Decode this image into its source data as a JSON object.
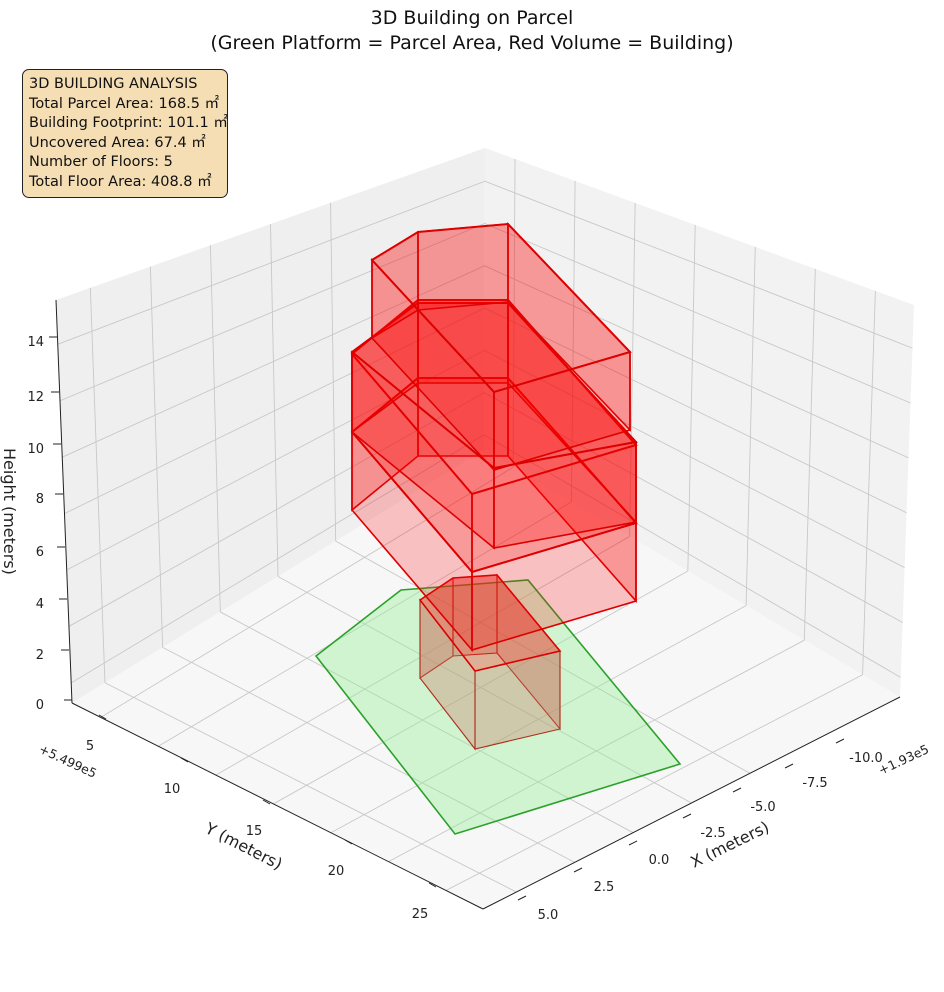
{
  "chart_data": {
    "type": "3d-polygons",
    "title": "3D Building on Parcel",
    "subtitle": "(Green Platform = Parcel Area, Red Volume = Building)",
    "xlabel": "X (meters)",
    "ylabel": "Y (meters)",
    "zlabel": "Height (meters)",
    "x_offset_label": "+1.93e5",
    "y_offset_label": "+5.499e5",
    "x_ticks": [
      "-10.0",
      "-7.5",
      "-5.0",
      "-2.5",
      "0.0",
      "2.5",
      "5.0"
    ],
    "y_ticks": [
      "5",
      "10",
      "15",
      "20",
      "25"
    ],
    "z_ticks": [
      "0",
      "2",
      "4",
      "6",
      "8",
      "10",
      "12",
      "14"
    ],
    "grid": true,
    "series": [
      {
        "name": "Parcel Area",
        "color": "#2ca02c",
        "fill": "#90ee90"
      },
      {
        "name": "Building",
        "color": "#dd0000",
        "fill": "#ff0000"
      }
    ]
  },
  "info": {
    "heading": "3D BUILDING ANALYSIS",
    "line1": "Total Parcel Area: 168.5 ㎡",
    "line2": "Building Footprint: 101.1 ㎡",
    "line3": "Uncovered Area: 67.4 ㎡",
    "line4": "Number of Floors: 5",
    "line5": "Total Floor Area: 408.8 ㎡"
  },
  "colors": {
    "pane_left": "#efefef",
    "pane_right": "#f2f2f2",
    "pane_floor": "#f7f7f7",
    "grid": "#c8c8c8",
    "info_box": "#f5deb3"
  }
}
